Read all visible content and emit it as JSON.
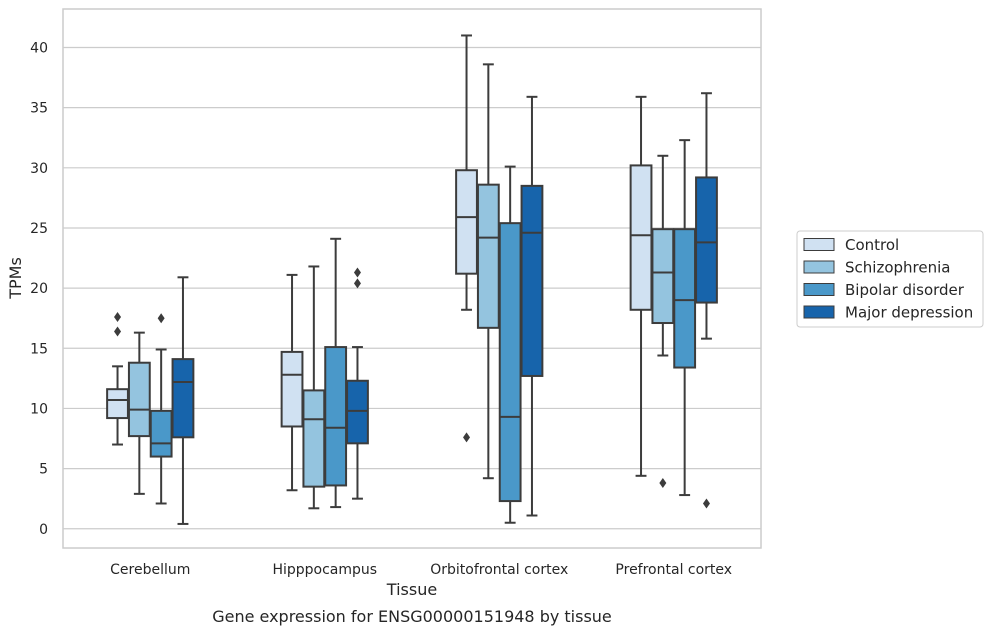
{
  "chart_data": {
    "type": "box",
    "caption": "Gene expression for ENSG00000151948 by tissue",
    "xlabel": "Tissue",
    "ylabel": "TPMs",
    "ylim": [
      -1.6,
      43.2
    ],
    "yticks": [
      0,
      5,
      10,
      15,
      20,
      25,
      30,
      35,
      40
    ],
    "grid": true,
    "legend_position": "right",
    "categories": [
      "Cerebellum",
      "Hipppocampus",
      "Orbitofrontal cortex",
      "Prefrontal cortex"
    ],
    "series": [
      {
        "name": "Control",
        "color": "#d0e1f2",
        "boxes": [
          {
            "whislo": 7.0,
            "q1": 9.2,
            "med": 10.7,
            "q3": 11.6,
            "whishi": 13.5,
            "fliers": [
              16.4,
              17.6
            ]
          },
          {
            "whislo": 3.2,
            "q1": 8.5,
            "med": 12.8,
            "q3": 14.7,
            "whishi": 21.1,
            "fliers": []
          },
          {
            "whislo": 18.2,
            "q1": 21.2,
            "med": 25.9,
            "q3": 29.8,
            "whishi": 41.0,
            "fliers": [
              7.6
            ]
          },
          {
            "whislo": 4.4,
            "q1": 18.2,
            "med": 24.4,
            "q3": 30.2,
            "whishi": 35.9,
            "fliers": []
          }
        ]
      },
      {
        "name": "Schizophrenia",
        "color": "#94c4df",
        "boxes": [
          {
            "whislo": 2.9,
            "q1": 7.7,
            "med": 9.9,
            "q3": 13.8,
            "whishi": 16.3,
            "fliers": []
          },
          {
            "whislo": 1.7,
            "q1": 3.5,
            "med": 9.1,
            "q3": 11.5,
            "whishi": 21.8,
            "fliers": []
          },
          {
            "whislo": 4.2,
            "q1": 16.7,
            "med": 24.2,
            "q3": 28.6,
            "whishi": 38.6,
            "fliers": []
          },
          {
            "whislo": 14.4,
            "q1": 17.1,
            "med": 21.3,
            "q3": 24.9,
            "whishi": 31.0,
            "fliers": [
              3.8
            ]
          }
        ]
      },
      {
        "name": "Bipolar disorder",
        "color": "#4a98c9",
        "boxes": [
          {
            "whislo": 2.1,
            "q1": 6.0,
            "med": 7.1,
            "q3": 9.8,
            "whishi": 14.9,
            "fliers": [
              17.5
            ]
          },
          {
            "whislo": 1.8,
            "q1": 3.6,
            "med": 8.4,
            "q3": 15.1,
            "whishi": 24.1,
            "fliers": []
          },
          {
            "whislo": 0.5,
            "q1": 2.3,
            "med": 9.3,
            "q3": 25.4,
            "whishi": 30.1,
            "fliers": []
          },
          {
            "whislo": 2.8,
            "q1": 13.4,
            "med": 19.0,
            "q3": 24.9,
            "whishi": 32.3,
            "fliers": []
          }
        ]
      },
      {
        "name": "Major depression",
        "color": "#1764ab",
        "boxes": [
          {
            "whislo": 0.4,
            "q1": 7.6,
            "med": 12.2,
            "q3": 14.1,
            "whishi": 20.9,
            "fliers": []
          },
          {
            "whislo": 2.5,
            "q1": 7.1,
            "med": 9.8,
            "q3": 12.3,
            "whishi": 15.1,
            "fliers": [
              20.4,
              21.3
            ]
          },
          {
            "whislo": 1.1,
            "q1": 12.7,
            "med": 24.6,
            "q3": 28.5,
            "whishi": 35.9,
            "fliers": []
          },
          {
            "whislo": 15.8,
            "q1": 18.8,
            "med": 23.8,
            "q3": 29.2,
            "whishi": 36.2,
            "fliers": [
              2.1
            ]
          }
        ]
      }
    ]
  }
}
